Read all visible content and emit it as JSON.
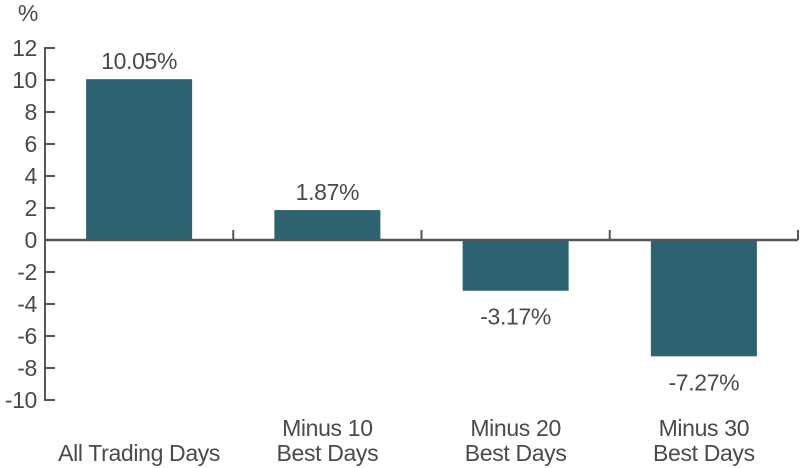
{
  "chart_data": {
    "type": "bar",
    "title": "",
    "unit_label": "%",
    "categories": [
      "All Trading Days",
      "Minus 10 Best Days",
      "Minus 20 Best Days",
      "Minus 30 Best Days"
    ],
    "category_label_lines": [
      [
        "All Trading Days"
      ],
      [
        "Minus 10",
        "Best Days"
      ],
      [
        "Minus 20",
        "Best Days"
      ],
      [
        "Minus 30",
        "Best Days"
      ]
    ],
    "values": [
      10.05,
      1.87,
      -3.17,
      -7.27
    ],
    "value_labels": [
      "10.05%",
      "1.87%",
      "-3.17%",
      "-7.27%"
    ],
    "ylim": [
      -10,
      12
    ],
    "ytick_step": 2,
    "ytick_labels": [
      "-10",
      "-8",
      "-6",
      "-4",
      "-2",
      "0",
      "2",
      "4",
      "6",
      "8",
      "10",
      "12"
    ],
    "legend": null,
    "grid": "off",
    "colors": {
      "bar": "#2D6370",
      "axis": "#55565A",
      "text": "#4A4A4C"
    }
  }
}
